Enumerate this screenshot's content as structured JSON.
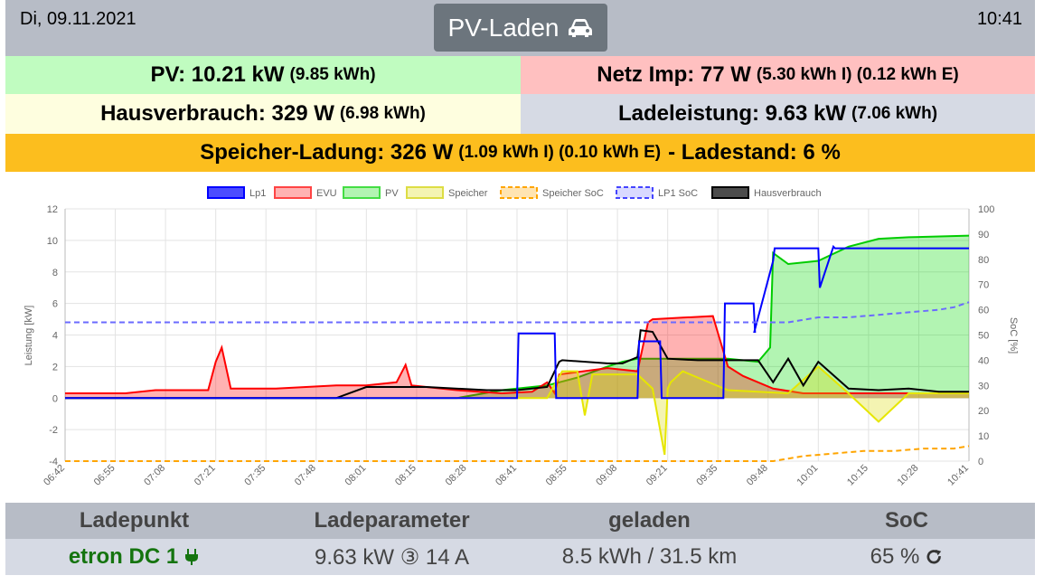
{
  "header": {
    "date": "Di, 09.11.2021",
    "time": "10:41",
    "mode_label": "PV-Laden",
    "mode_icon": "car-icon"
  },
  "summary": {
    "pv_main": "PV: 10.21 kW",
    "pv_sub": "(9.85 kWh)",
    "netz_main": "Netz Imp: 77 W",
    "netz_sub": "(5.30 kWh I) (0.12 kWh E)",
    "haus_main": "Hausverbrauch: 329 W",
    "haus_sub": "(6.98 kWh)",
    "lade_main": "Ladeleistung: 9.63 kW",
    "lade_sub": "(7.06 kWh)",
    "speicher_main": "Speicher-Ladung: 326 W",
    "speicher_sub": "(1.09 kWh I) (0.10 kWh E)",
    "speicher_tail": "- Ladestand: 6 %"
  },
  "colors": {
    "pv_bg": "#c0fcc0",
    "netz_bg": "#ffc0c0",
    "haus_bg": "#fefedf",
    "lade_bg": "#d6dae4",
    "speicher_bg": "#fcbe1e",
    "header_bg": "#b7bcc6",
    "lp_name": "#15740f"
  },
  "chart_data": {
    "type": "line",
    "ylabel": "Leistung [kW]",
    "y2label": "SoC [%]",
    "ylim": [
      -4,
      12
    ],
    "y2lim": [
      0,
      100
    ],
    "yticks": [
      12,
      10,
      8,
      6,
      4,
      2,
      0,
      -2,
      -4
    ],
    "y2ticks": [
      100,
      90,
      80,
      70,
      60,
      50,
      40,
      30,
      20,
      10,
      0
    ],
    "x_ticks": [
      "06:42",
      "06:55",
      "07:08",
      "07:21",
      "07:35",
      "07:48",
      "08:01",
      "08:15",
      "08:28",
      "08:41",
      "08:55",
      "09:08",
      "09:21",
      "09:35",
      "09:48",
      "10:01",
      "10:15",
      "10:28",
      "10:41"
    ],
    "grid": true,
    "legend_position": "top",
    "legend": [
      "Lp1",
      "EVU",
      "PV",
      "Speicher",
      "Speicher SoC",
      "LP1 SoC",
      "Hausverbrauch"
    ],
    "series": [
      {
        "name": "Lp1",
        "color": "#0000ff",
        "axis": "left",
        "x": [
          0,
          300,
          301,
          325,
          326,
          380,
          381,
          395,
          396,
          437,
          438,
          457,
          458,
          457.5,
          470,
          471,
          500,
          501,
          510,
          511,
          600
        ],
        "values": [
          0,
          0,
          4.1,
          4.1,
          0,
          0,
          3.6,
          3.6,
          0,
          0,
          6,
          6,
          4.2,
          4.2,
          8.7,
          9.5,
          9.5,
          7,
          9.6,
          9.5,
          9.5
        ]
      },
      {
        "name": "EVU",
        "color": "#ff0000",
        "axis": "left",
        "x": [
          0,
          40,
          60,
          80,
          95,
          100,
          104,
          110,
          140,
          160,
          180,
          200,
          220,
          226,
          230,
          260,
          290,
          310,
          320,
          325,
          328,
          360,
          380,
          387,
          390,
          410,
          430,
          440,
          450,
          470,
          490,
          520,
          560,
          600
        ],
        "values": [
          0.3,
          0.3,
          0.5,
          0.5,
          0.5,
          2.3,
          3.2,
          0.6,
          0.6,
          0.7,
          0.8,
          0.8,
          1.0,
          2.1,
          0.8,
          0.5,
          0.3,
          0.4,
          1.0,
          0.3,
          1.5,
          1.9,
          1.7,
          4.8,
          5.0,
          5.1,
          5.2,
          2.0,
          1.4,
          0.6,
          0.3,
          0.3,
          0.3,
          0.3
        ]
      },
      {
        "name": "PV",
        "color": "#00cc00",
        "axis": "left",
        "x": [
          0,
          260,
          290,
          320,
          340,
          360,
          370,
          380,
          400,
          420,
          440,
          460,
          468,
          470,
          480,
          500,
          520,
          540,
          560,
          600
        ],
        "values": [
          0,
          0,
          0.5,
          0.8,
          1.3,
          2.0,
          2.3,
          2.5,
          2.5,
          2.5,
          2.5,
          2.3,
          3.2,
          9.2,
          8.5,
          8.7,
          9.6,
          10.1,
          10.2,
          10.3
        ]
      },
      {
        "name": "Speicher",
        "color": "#e6e600",
        "axis": "left",
        "x": [
          0,
          320,
          330,
          340,
          345,
          350,
          380,
          390,
          398,
          400,
          402,
          410,
          440,
          480,
          500,
          520,
          540,
          560,
          580,
          600
        ],
        "values": [
          0,
          0,
          1.7,
          1.7,
          -1.1,
          1.5,
          1.5,
          0.6,
          -3.6,
          0.6,
          1.0,
          1.7,
          0.5,
          0.3,
          2.0,
          0.3,
          -1.5,
          0.3,
          0.3,
          0.3
        ]
      },
      {
        "name": "Speicher SoC",
        "color": "#ffa500",
        "axis": "right",
        "x": [
          0,
          470,
          490,
          510,
          530,
          550,
          570,
          590,
          600
        ],
        "values": [
          0,
          0,
          2,
          3,
          4,
          4,
          5,
          5,
          6
        ]
      },
      {
        "name": "LP1 SoC",
        "color": "#0000ff",
        "axis": "right",
        "x": [
          0,
          480,
          500,
          520,
          540,
          560,
          580,
          590,
          600
        ],
        "values": [
          55,
          55,
          57,
          57,
          58,
          59,
          60,
          61,
          63
        ]
      },
      {
        "name": "Hausverbrauch",
        "color": "#000000",
        "axis": "left",
        "x": [
          0,
          180,
          200,
          240,
          280,
          300,
          320,
          328,
          330,
          360,
          370,
          380,
          382,
          390,
          400,
          420,
          440,
          460,
          470,
          480,
          490,
          500,
          520,
          540,
          560,
          580,
          600
        ],
        "values": [
          0,
          0,
          0.7,
          0.7,
          0.5,
          0.5,
          0.7,
          2.3,
          2.4,
          2.2,
          2.2,
          2.6,
          4.3,
          4.2,
          2.5,
          2.4,
          2.4,
          2.4,
          1.0,
          2.5,
          0.8,
          2.3,
          0.6,
          0.5,
          0.6,
          0.4,
          0.4
        ]
      }
    ]
  },
  "loadpoint_table": {
    "headers": [
      "Ladepunkt",
      "Ladeparameter",
      "geladen",
      "SoC"
    ],
    "row": {
      "name": "etron DC 1",
      "params": "9.63 kW ③ 14 A",
      "charged": "8.5 kWh / 31.5 km",
      "soc": "65 %"
    }
  }
}
